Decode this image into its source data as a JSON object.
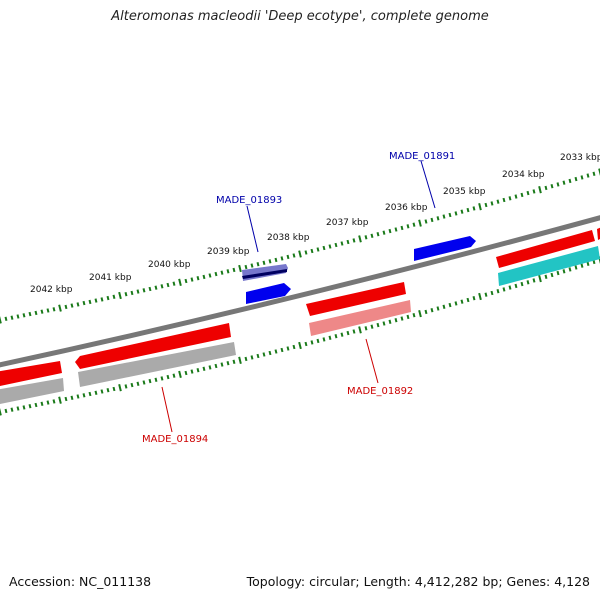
{
  "title": "Alteromonas macleodii 'Deep ecotype', complete genome",
  "footer": {
    "accession": "Accession: NC_011138",
    "summary": "Topology: circular; Length: 4,412,282 bp; Genes: 4,128"
  },
  "colors": {
    "cds_forward": "#ee0000",
    "cds_forward_alt": "#0000ee",
    "rna_shadow_grey": "#999999",
    "rna_shadow_pink": "#ee8888",
    "rna_shadow_teal": "#22c4c4",
    "backbone": "#777777",
    "tick": "#1a7a1a",
    "label_blue": "#0000aa",
    "label_red": "#cc0000"
  },
  "scale": {
    "outer_ticks": [
      "2042 kbp",
      "2041 kbp",
      "2040 kbp",
      "2039 kbp",
      "2038 kbp",
      "2037 kbp",
      "2036 kbp",
      "2035 kbp",
      "2034 kbp",
      "2033 kbp"
    ]
  },
  "gene_labels": [
    {
      "id": "MADE_01891",
      "color": "blue"
    },
    {
      "id": "MADE_01893",
      "color": "blue"
    },
    {
      "id": "MADE_01892",
      "color": "red"
    },
    {
      "id": "MADE_01894",
      "color": "red"
    }
  ]
}
